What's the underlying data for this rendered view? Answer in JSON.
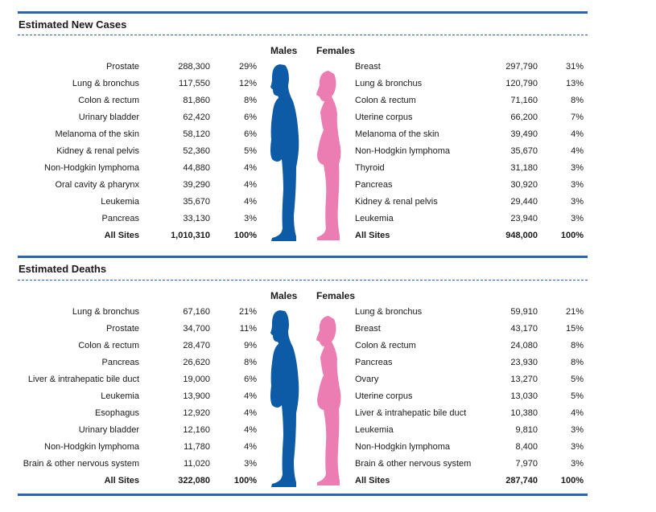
{
  "colors": {
    "male": "#0d5aa7",
    "female": "#ec7db3",
    "rule": "#2a64ad"
  },
  "chart_data": [
    {
      "type": "table",
      "title": "Estimated New Cases",
      "column_headers": {
        "males": "Males",
        "females": "Females"
      },
      "males": [
        {
          "site": "Prostate",
          "count": "288,300",
          "percent": "29%"
        },
        {
          "site": "Lung & bronchus",
          "count": "117,550",
          "percent": "12%"
        },
        {
          "site": "Colon & rectum",
          "count": "81,860",
          "percent": "8%"
        },
        {
          "site": "Urinary bladder",
          "count": "62,420",
          "percent": "6%"
        },
        {
          "site": "Melanoma of the skin",
          "count": "58,120",
          "percent": "6%"
        },
        {
          "site": "Kidney & renal pelvis",
          "count": "52,360",
          "percent": "5%"
        },
        {
          "site": "Non-Hodgkin lymphoma",
          "count": "44,880",
          "percent": "4%"
        },
        {
          "site": "Oral cavity & pharynx",
          "count": "39,290",
          "percent": "4%"
        },
        {
          "site": "Leukemia",
          "count": "35,670",
          "percent": "4%"
        },
        {
          "site": "Pancreas",
          "count": "33,130",
          "percent": "3%"
        }
      ],
      "males_total": {
        "site": "All Sites",
        "count": "1,010,310",
        "percent": "100%"
      },
      "females": [
        {
          "site": "Breast",
          "count": "297,790",
          "percent": "31%"
        },
        {
          "site": "Lung & bronchus",
          "count": "120,790",
          "percent": "13%"
        },
        {
          "site": "Colon & rectum",
          "count": "71,160",
          "percent": "8%"
        },
        {
          "site": "Uterine corpus",
          "count": "66,200",
          "percent": "7%"
        },
        {
          "site": "Melanoma of the skin",
          "count": "39,490",
          "percent": "4%"
        },
        {
          "site": "Non-Hodgkin lymphoma",
          "count": "35,670",
          "percent": "4%"
        },
        {
          "site": "Thyroid",
          "count": "31,180",
          "percent": "3%"
        },
        {
          "site": "Pancreas",
          "count": "30,920",
          "percent": "3%"
        },
        {
          "site": "Kidney & renal pelvis",
          "count": "29,440",
          "percent": "3%"
        },
        {
          "site": "Leukemia",
          "count": "23,940",
          "percent": "3%"
        }
      ],
      "females_total": {
        "site": "All Sites",
        "count": "948,000",
        "percent": "100%"
      }
    },
    {
      "type": "table",
      "title": "Estimated Deaths",
      "column_headers": {
        "males": "Males",
        "females": "Females"
      },
      "males": [
        {
          "site": "Lung & bronchus",
          "count": "67,160",
          "percent": "21%"
        },
        {
          "site": "Prostate",
          "count": "34,700",
          "percent": "11%"
        },
        {
          "site": "Colon & rectum",
          "count": "28,470",
          "percent": "9%"
        },
        {
          "site": "Pancreas",
          "count": "26,620",
          "percent": "8%"
        },
        {
          "site": "Liver & intrahepatic bile duct",
          "count": "19,000",
          "percent": "6%"
        },
        {
          "site": "Leukemia",
          "count": "13,900",
          "percent": "4%"
        },
        {
          "site": "Esophagus",
          "count": "12,920",
          "percent": "4%"
        },
        {
          "site": "Urinary bladder",
          "count": "12,160",
          "percent": "4%"
        },
        {
          "site": "Non-Hodgkin lymphoma",
          "count": "11,780",
          "percent": "4%"
        },
        {
          "site": "Brain & other nervous system",
          "count": "11,020",
          "percent": "3%"
        }
      ],
      "males_total": {
        "site": "All Sites",
        "count": "322,080",
        "percent": "100%"
      },
      "females": [
        {
          "site": "Lung & bronchus",
          "count": "59,910",
          "percent": "21%"
        },
        {
          "site": "Breast",
          "count": "43,170",
          "percent": "15%"
        },
        {
          "site": "Colon & rectum",
          "count": "24,080",
          "percent": "8%"
        },
        {
          "site": "Pancreas",
          "count": "23,930",
          "percent": "8%"
        },
        {
          "site": "Ovary",
          "count": "13,270",
          "percent": "5%"
        },
        {
          "site": "Uterine corpus",
          "count": "13,030",
          "percent": "5%"
        },
        {
          "site": "Liver & intrahepatic bile duct",
          "count": "10,380",
          "percent": "4%"
        },
        {
          "site": "Leukemia",
          "count": "9,810",
          "percent": "3%"
        },
        {
          "site": "Non-Hodgkin lymphoma",
          "count": "8,400",
          "percent": "3%"
        },
        {
          "site": "Brain & other nervous system",
          "count": "7,970",
          "percent": "3%"
        }
      ],
      "females_total": {
        "site": "All Sites",
        "count": "287,740",
        "percent": "100%"
      }
    }
  ]
}
